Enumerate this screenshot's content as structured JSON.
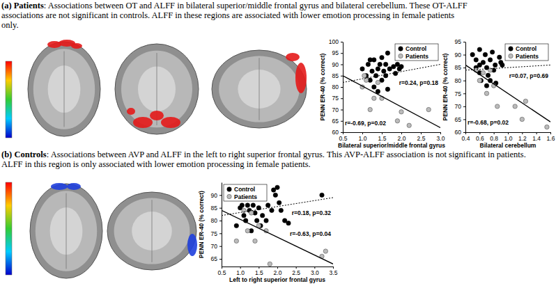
{
  "captions": [
    {
      "label": "(a) Patients",
      "lines": [
        ": Associations between OT and ALFF in bilateral superior/middle frontal gyrus and bilateral cerebellum. These OT-ALFF",
        "associations are not significant in controls. ALFF in these regions are associated with lower emotion processing in female patients",
        "only."
      ]
    },
    {
      "label": "(b) Controls",
      "lines": [
        ": Associations between AVP and ALFF in the left to right superior frontal gyrus. This AVP-ALFF association is not significant in patients.",
        "ALFF in this region is only associated with lower emotion processing in female patients."
      ]
    }
  ],
  "chart_data": [
    {
      "type": "scatter",
      "x_label": "Bilateral superior/middle frontal gyrus",
      "y_label": "PENN ER-40 (% correct)",
      "xlim": [
        0.5,
        3.0
      ],
      "ylim": [
        60,
        100
      ],
      "xticks": [
        0.5,
        {
          "value": 1,
          "label": "1.0"
        },
        1.5,
        {
          "value": 2,
          "label": "2.0"
        },
        2.5,
        {
          "value": 3,
          "label": "3.0"
        }
      ],
      "yticks": [
        60,
        65,
        70,
        75,
        80,
        85,
        90,
        95,
        100
      ],
      "legend": "upper right",
      "series": [
        {
          "name": "Control",
          "color": "#000000",
          "marker": "circle",
          "x": [
            1.0,
            1.1,
            1.15,
            1.2,
            1.25,
            1.3,
            1.3,
            1.35,
            1.4,
            1.45,
            1.5,
            1.5,
            1.55,
            1.6,
            1.6,
            1.65,
            1.7,
            1.65,
            1.8,
            1.85,
            1.9,
            1.95,
            2.0,
            1.4,
            1.2
          ],
          "values": [
            88,
            85,
            90,
            83,
            87,
            92,
            80,
            85,
            88,
            90,
            83,
            93,
            87,
            85,
            90,
            95,
            88,
            79,
            89,
            86,
            90,
            88,
            89,
            78,
            92
          ],
          "fit": {
            "x": [
              0.5,
              3.0
            ],
            "y": [
              82,
              90
            ],
            "line_style": "dotted",
            "label": "r=0.24, p=0.18"
          }
        },
        {
          "name": "Patients",
          "color": "#bbbbbb",
          "marker": "circle",
          "x": [
            1.0,
            1.05,
            1.1,
            1.2,
            1.4,
            1.5,
            1.9,
            2.0,
            2.2,
            2.7,
            1.3
          ],
          "values": [
            80,
            85,
            83,
            70,
            82,
            75,
            65,
            69,
            63,
            70,
            75
          ],
          "fit": {
            "x": [
              0.5,
              3.0
            ],
            "y": [
              85,
              62
            ],
            "line_style": "solid",
            "label": "r=-0.69, p=0.02"
          }
        }
      ]
    },
    {
      "type": "scatter",
      "x_label": "Bilateral cerebellum",
      "y_label": "PENN ER-40 (% correct)",
      "xlim": [
        0.4,
        1.6
      ],
      "ylim": [
        60,
        95
      ],
      "xticks": [
        0.4,
        0.6,
        0.8,
        {
          "value": 1,
          "label": "1.0"
        },
        1.2,
        1.4,
        1.6
      ],
      "yticks": [
        60,
        65,
        70,
        75,
        80,
        85,
        90,
        95
      ],
      "legend": "upper right",
      "series": [
        {
          "name": "Control",
          "color": "#000000",
          "marker": "circle",
          "x": [
            0.5,
            0.55,
            0.55,
            0.6,
            0.6,
            0.62,
            0.65,
            0.68,
            0.7,
            0.7,
            0.72,
            0.75,
            0.78,
            0.8,
            0.82,
            0.83,
            0.88,
            0.9,
            0.92,
            0.6,
            0.75
          ],
          "values": [
            90,
            88,
            85,
            92,
            83,
            80,
            87,
            90,
            85,
            78,
            82,
            88,
            91,
            84,
            86,
            79,
            89,
            87,
            86,
            86,
            80
          ],
          "fit": {
            "x": [
              0.4,
              1.6
            ],
            "y": [
              84,
              86
            ],
            "line_style": "dotted",
            "label": "r=0.07, p=0.69"
          }
        },
        {
          "name": "Patients",
          "color": "#bbbbbb",
          "marker": "circle",
          "x": [
            0.55,
            0.6,
            0.65,
            0.7,
            0.8,
            0.85,
            0.75,
            1.2,
            1.1,
            1.25,
            1.55
          ],
          "values": [
            84,
            80,
            83,
            75,
            78,
            70,
            84,
            65,
            70,
            72,
            62
          ],
          "fit": {
            "x": [
              0.4,
              1.6
            ],
            "y": [
              86,
              64
            ],
            "line_style": "solid",
            "label": "r=-0.68, p=0.02"
          }
        }
      ]
    },
    {
      "type": "scatter",
      "x_label": "Left to right superior frontal gyrus",
      "y_label": "PENN ER-40 (% correct)",
      "xlim": [
        0.5,
        3.5
      ],
      "ylim": [
        62,
        95
      ],
      "xticks": [
        0.5,
        {
          "value": 1,
          "label": "1.0"
        },
        1.5,
        {
          "value": 2,
          "label": "2.0"
        },
        2.5,
        {
          "value": 3,
          "label": "3.0"
        },
        3.5
      ],
      "yticks": [
        65,
        70,
        75,
        80,
        85,
        90
      ],
      "legend": "upper left",
      "series": [
        {
          "name": "Control",
          "color": "#000000",
          "marker": "circle",
          "x": [
            0.9,
            1.0,
            1.05,
            1.1,
            1.15,
            1.2,
            1.25,
            1.3,
            1.35,
            1.4,
            1.45,
            1.5,
            1.55,
            1.6,
            1.7,
            1.75,
            1.9,
            1.95,
            2.0,
            2.05,
            2.1,
            2.2,
            2.3,
            3.2,
            1.85
          ],
          "values": [
            78,
            85,
            86,
            82,
            80,
            86,
            84,
            76,
            86,
            83,
            80,
            85,
            78,
            82,
            80,
            86,
            92,
            90,
            93,
            87,
            84,
            80,
            79,
            90,
            84
          ],
          "fit": {
            "x": [
              0.5,
              3.5
            ],
            "y": [
              82,
              89
            ],
            "line_style": "dotted",
            "label": "r=0.18, p=0.32"
          }
        },
        {
          "name": "Patients",
          "color": "#bbbbbb",
          "marker": "circle",
          "x": [
            0.9,
            1.1,
            1.2,
            1.3,
            1.5,
            1.7,
            1.8,
            3.2,
            3.3,
            1.4
          ],
          "values": [
            72,
            84,
            76,
            83,
            78,
            76,
            63,
            66,
            68,
            72
          ],
          "fit": {
            "x": [
              0.5,
              3.5
            ],
            "y": [
              84,
              63
            ],
            "line_style": "solid",
            "label": "r=-0.63, p=0.04"
          }
        }
      ]
    }
  ]
}
